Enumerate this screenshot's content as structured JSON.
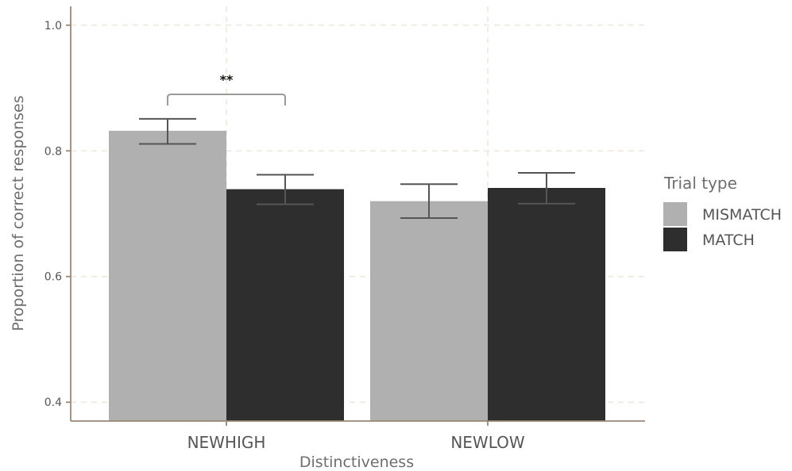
{
  "chart_data": {
    "type": "bar",
    "xlabel": "Distinctiveness",
    "ylabel": "Proportion of correct responses",
    "categories": [
      "NEWHIGH",
      "NEWLOW"
    ],
    "series": [
      {
        "name": "MISMATCH",
        "color": "#b0b0b0",
        "values": [
          0.832,
          0.72
        ],
        "err_low": [
          0.811,
          0.693
        ],
        "err_high": [
          0.851,
          0.747
        ]
      },
      {
        "name": "MATCH",
        "color": "#2e2e2e",
        "values": [
          0.739,
          0.741
        ],
        "err_low": [
          0.715,
          0.716
        ],
        "err_high": [
          0.762,
          0.765
        ]
      }
    ],
    "yticks": [
      "0.4",
      "0.6",
      "0.8",
      "1.0"
    ],
    "ylim": [
      0.37,
      1.03
    ],
    "grid": true,
    "legend": {
      "title": "Trial type",
      "position": "right"
    },
    "annotations": [
      {
        "text": "**",
        "category": "NEWHIGH",
        "between": [
          "MISMATCH",
          "MATCH"
        ],
        "y": 0.89
      }
    ]
  }
}
